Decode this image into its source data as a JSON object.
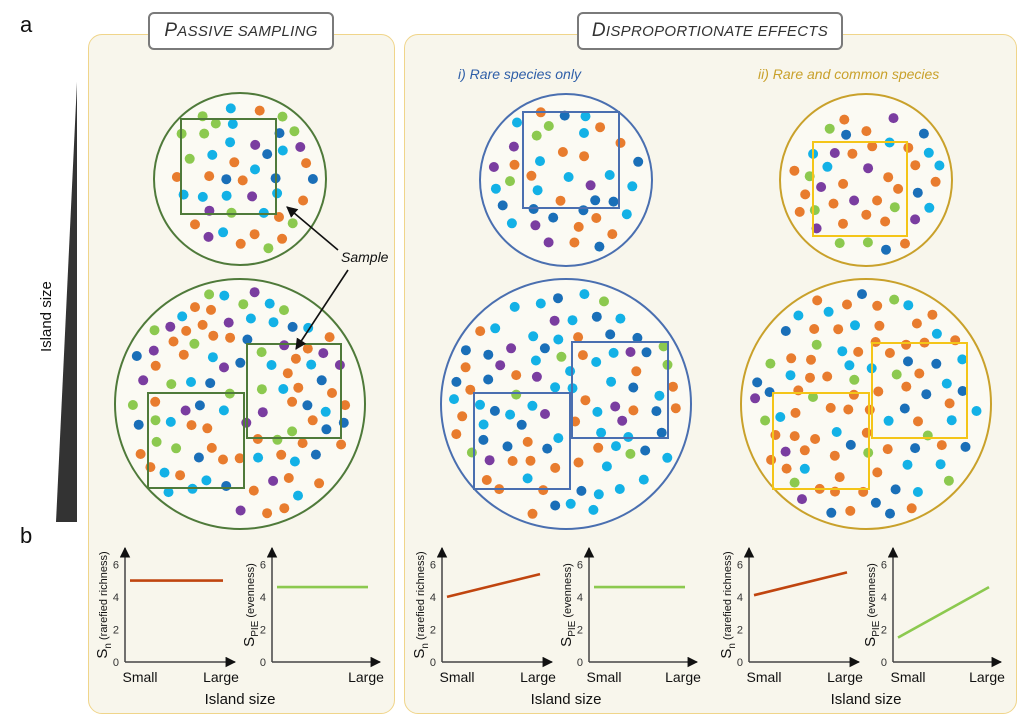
{
  "panel_labels": {
    "a": "a",
    "b": "b"
  },
  "left_axis_label": "Island size",
  "passive": {
    "title_first": "P",
    "title_rest": "ASSIVE SAMPLING",
    "sample_label": "Sample"
  },
  "disproportionate": {
    "title_first": "D",
    "title_rest": "ISPROPORTIONATE EFFECTS",
    "sub1": "i) Rare species only",
    "sub2": "ii) Rare and common species"
  },
  "colors": {
    "passive": "#4f7a3a",
    "rare": "#4a6fb0",
    "common": "#c9a12b",
    "common_sample": "#f4c518",
    "orange": "#e87c2e",
    "blue": "#1a6fb8",
    "cyan": "#13b1e6",
    "purple": "#7a3da0",
    "green": "#8cc94f",
    "richness_line": "#c0450f",
    "evenness_line": "#8cc94f"
  },
  "chart_data": [
    {
      "id": "passive-sn",
      "type": "line",
      "ylabel": "S",
      "ysub": "n",
      "yextra": " (rarefied richness)",
      "xticks": [
        "Small",
        "Large"
      ],
      "yticks": [
        "0",
        "2",
        "4",
        "6"
      ],
      "ylim": [
        0,
        7
      ],
      "series": [
        {
          "values": [
            5,
            5
          ]
        }
      ]
    },
    {
      "id": "passive-spie",
      "type": "line",
      "ylabel": "S",
      "ysub": "PIE",
      "yextra": " (evenness)",
      "xticks": [
        "",
        "Large"
      ],
      "yticks": [
        "0",
        "2",
        "4",
        "6"
      ],
      "ylim": [
        0,
        7
      ],
      "series": [
        {
          "values": [
            4.6,
            4.6
          ]
        }
      ]
    },
    {
      "id": "rare-sn",
      "type": "line",
      "ylabel": "S",
      "ysub": "n",
      "yextra": " (rarefied richness)",
      "xticks": [
        "Small",
        "Large"
      ],
      "yticks": [
        "0",
        "2",
        "4",
        "6"
      ],
      "ylim": [
        0,
        7
      ],
      "series": [
        {
          "values": [
            4,
            5.4
          ]
        }
      ]
    },
    {
      "id": "rare-spie",
      "type": "line",
      "ylabel": "S",
      "ysub": "PIE",
      "yextra": " (evenness)",
      "xticks": [
        "Small",
        "Large"
      ],
      "yticks": [
        "0",
        "2",
        "4",
        "6"
      ],
      "ylim": [
        0,
        7
      ],
      "series": [
        {
          "values": [
            4.6,
            4.6
          ]
        }
      ]
    },
    {
      "id": "common-sn",
      "type": "line",
      "ylabel": "S",
      "ysub": "n",
      "yextra": " (rarefied richness)",
      "xticks": [
        "Small",
        "Large"
      ],
      "yticks": [
        "0",
        "2",
        "4",
        "6"
      ],
      "ylim": [
        0,
        7
      ],
      "series": [
        {
          "values": [
            4.1,
            5.5
          ]
        }
      ]
    },
    {
      "id": "common-spie",
      "type": "line",
      "ylabel": "S",
      "ysub": "PIE",
      "yextra": " (evenness)",
      "xticks": [
        "Small",
        "Large"
      ],
      "yticks": [
        "0",
        "2",
        "4",
        "6"
      ],
      "ylim": [
        0,
        7
      ],
      "series": [
        {
          "values": [
            1.5,
            4.6
          ]
        }
      ]
    }
  ],
  "x_axis_title": "Island size"
}
